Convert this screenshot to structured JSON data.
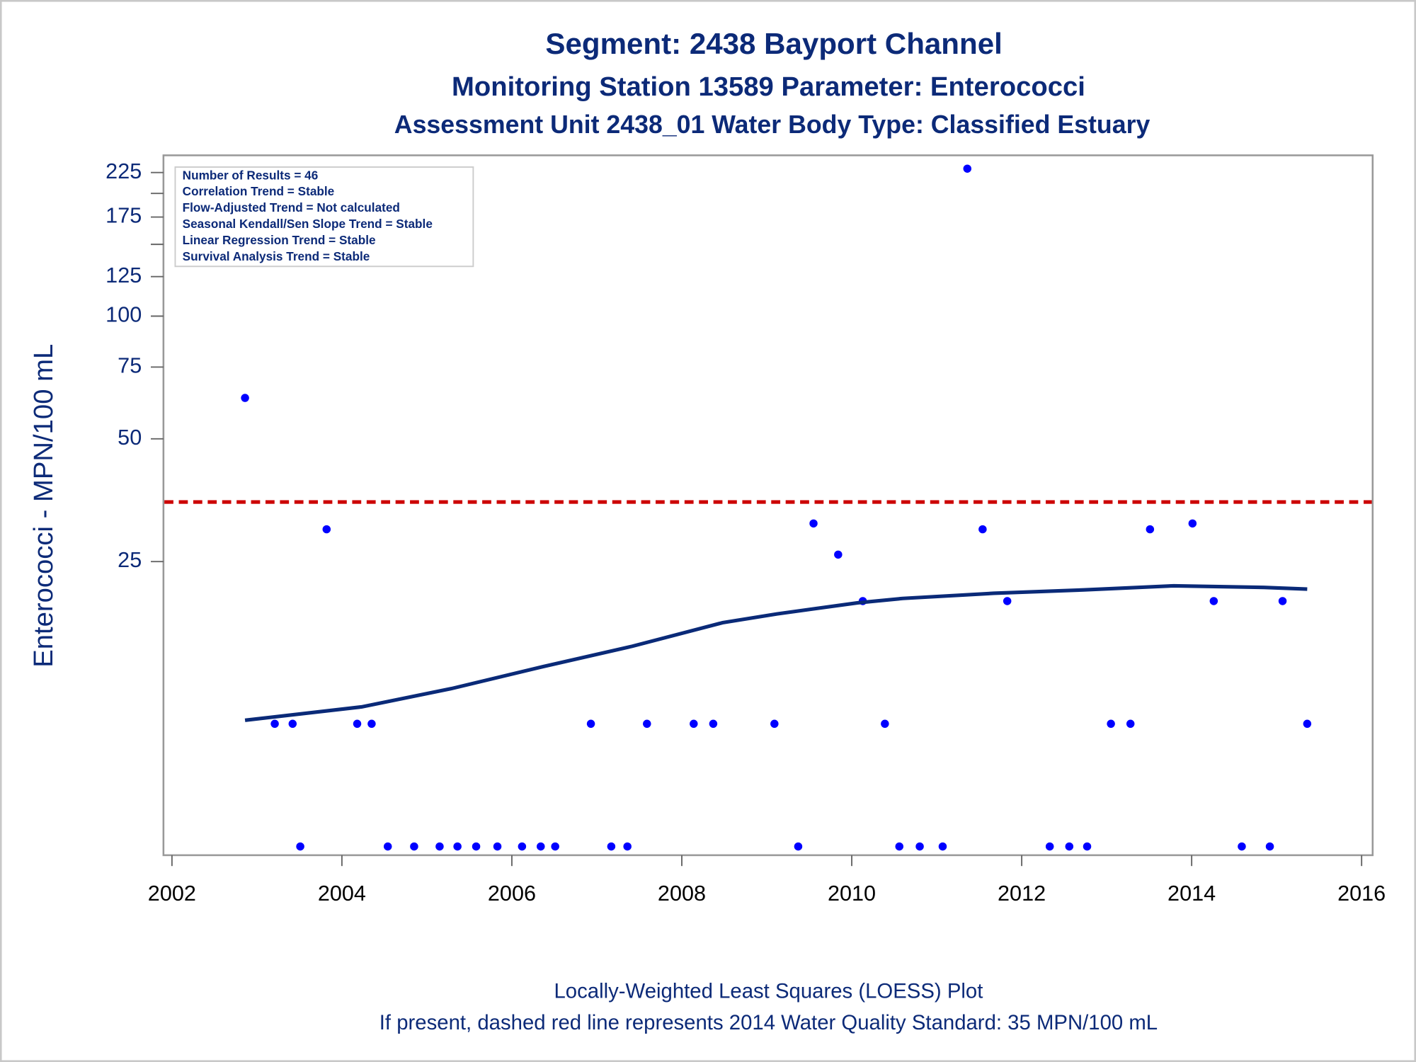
{
  "chart_data": {
    "type": "scatter",
    "title": "Segment: 2438  Bayport Channel",
    "subtitles": [
      "Monitoring Station 13589 Parameter: Enterococci",
      "Assessment Unit 2438_01   Water Body Type: Classified Estuary"
    ],
    "ylabel": "Enterococci - MPN/100 mL",
    "footnotes": [
      "Locally-Weighted Least Squares (LOESS) Plot",
      "If present, dashed red line represents 2014 Water Quality Standard: 35 MPN/100 mL"
    ],
    "annotations": [
      "Number of Results = 46",
      "Correlation Trend = Stable",
      "Flow-Adjusted Trend = Not calculated",
      "Seasonal Kendall/Sen Slope Trend = Stable",
      "Linear Regression Trend = Stable",
      "Survival Analysis Trend = Stable"
    ],
    "xlim": [
      2001.9,
      2016.13
    ],
    "xticks": [
      2002,
      2004,
      2006,
      2008,
      2010,
      2012,
      2014,
      2016
    ],
    "ylim": [
      4.76,
      248
    ],
    "yscale": "log",
    "yticks": [
      25,
      50,
      75,
      100,
      125,
      175,
      225
    ],
    "yminorticks": [
      150,
      200
    ],
    "reference_line": {
      "value": 35,
      "color": "#cc0000",
      "style": "dashed"
    },
    "series": [
      {
        "type": "scatter",
        "color": "#0000ff",
        "x": [
          2002.86,
          2003.21,
          2003.42,
          2003.51,
          2003.82,
          2004.18,
          2004.35,
          2004.54,
          2004.85,
          2005.15,
          2005.36,
          2005.58,
          2005.83,
          2006.12,
          2006.34,
          2006.51,
          2006.93,
          2007.17,
          2007.36,
          2007.59,
          2008.14,
          2008.37,
          2009.09,
          2009.37,
          2009.55,
          2009.84,
          2010.13,
          2010.39,
          2010.56,
          2010.8,
          2011.07,
          2011.36,
          2011.54,
          2011.83,
          2012.33,
          2012.56,
          2012.77,
          2013.05,
          2013.28,
          2013.51,
          2014.01,
          2014.26,
          2014.59,
          2014.92,
          2015.07,
          2015.36
        ],
        "values": [
          63,
          10,
          10,
          5,
          30,
          10,
          10,
          5,
          5,
          5,
          5,
          5,
          5,
          5,
          5,
          5,
          10,
          5,
          5,
          10,
          10,
          10,
          10,
          5,
          31,
          26,
          20,
          10,
          5,
          5,
          5,
          230,
          30,
          20,
          5,
          5,
          5,
          10,
          10,
          30,
          31,
          20,
          5,
          5,
          20,
          10
        ]
      },
      {
        "type": "line",
        "color": "#0a2a78",
        "x": [
          2002.86,
          2004.23,
          2005.29,
          2006.36,
          2007.42,
          2008.48,
          2009.12,
          2010.07,
          2010.6,
          2011.67,
          2012.73,
          2013.79,
          2014.85,
          2015.36
        ],
        "values": [
          10.2,
          11.0,
          12.2,
          13.8,
          15.5,
          17.7,
          18.6,
          19.8,
          20.3,
          20.9,
          21.3,
          21.8,
          21.6,
          21.4
        ]
      }
    ]
  }
}
